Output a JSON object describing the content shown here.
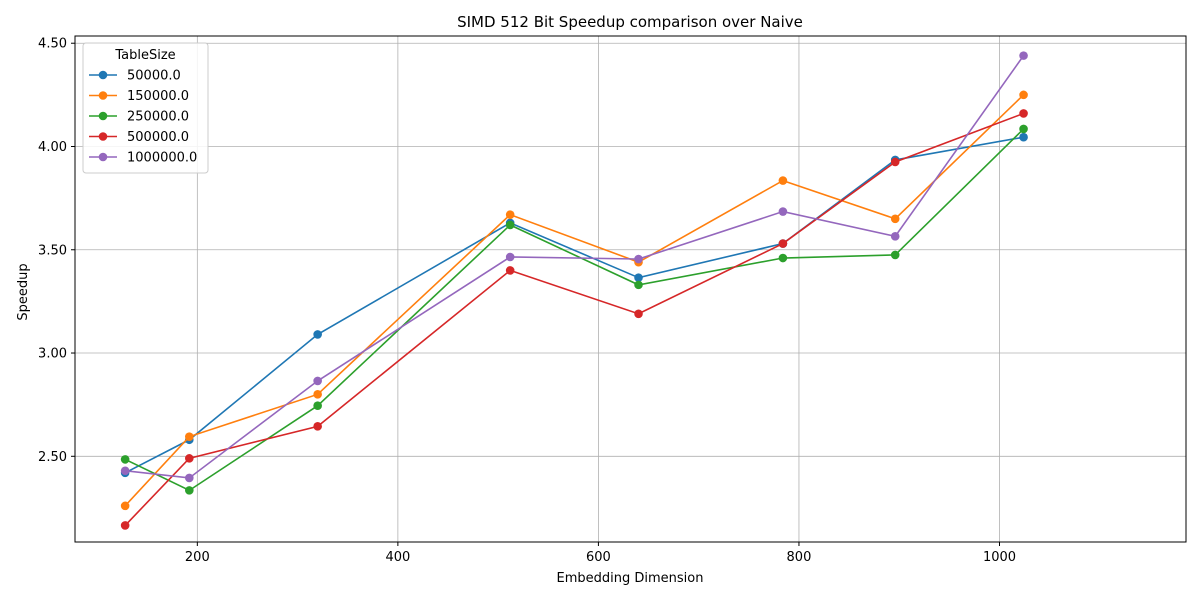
{
  "chart_data": {
    "type": "line",
    "title": "SIMD 512 Bit Speedup comparison over Naive",
    "xlabel": "Embedding Dimension",
    "ylabel": "Speedup",
    "xlim": [
      78,
      1186
    ],
    "ylim": [
      2.085,
      4.535
    ],
    "xticks": [
      200,
      400,
      600,
      800,
      1000
    ],
    "yticks": [
      2.5,
      3.0,
      3.5,
      4.0,
      4.5
    ],
    "ytick_labels": [
      "2.50",
      "3.00",
      "3.50",
      "4.00",
      "4.50"
    ],
    "grid": true,
    "legend": {
      "title": "TableSize",
      "placement": "upper-left"
    },
    "x": [
      128,
      192,
      320,
      512,
      640,
      784,
      896,
      1024
    ],
    "series": [
      {
        "name": "50000.0",
        "color": "#1f77b4",
        "values": [
          2.42,
          2.58,
          3.09,
          3.63,
          3.365,
          3.53,
          3.935,
          4.045
        ]
      },
      {
        "name": "150000.0",
        "color": "#ff7f0e",
        "values": [
          2.26,
          2.595,
          2.8,
          3.67,
          3.44,
          3.835,
          3.65,
          4.25
        ]
      },
      {
        "name": "250000.0",
        "color": "#2ca02c",
        "values": [
          2.485,
          2.335,
          2.745,
          3.62,
          3.33,
          3.46,
          3.475,
          4.085
        ]
      },
      {
        "name": "500000.0",
        "color": "#d62728",
        "values": [
          2.165,
          2.49,
          2.645,
          3.4,
          3.19,
          3.53,
          3.925,
          4.16
        ]
      },
      {
        "name": "1000000.0",
        "color": "#9467bd",
        "values": [
          2.43,
          2.395,
          2.865,
          3.465,
          3.455,
          3.685,
          3.565,
          4.44
        ]
      }
    ]
  }
}
